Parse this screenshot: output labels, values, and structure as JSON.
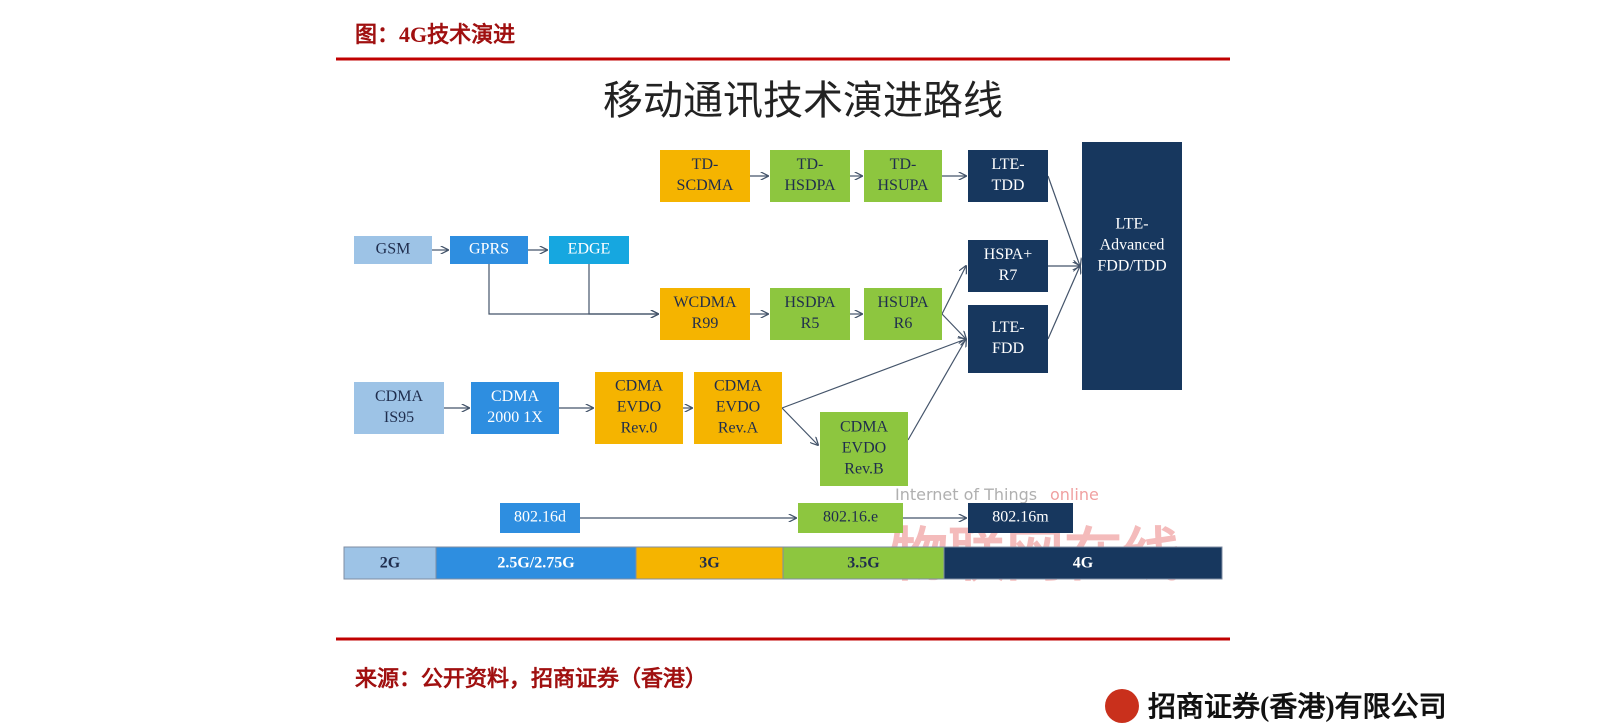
{
  "header": {
    "title": "图：4G技术演进"
  },
  "diagram": {
    "title": "移动通讯技术演进路线",
    "nodes": [
      {
        "lines": [
          "TD-",
          "SCDMA"
        ]
      },
      {
        "lines": [
          "TD-",
          "HSDPA"
        ]
      },
      {
        "lines": [
          "TD-",
          "HSUPA"
        ]
      },
      {
        "lines": [
          "LTE-",
          "TDD"
        ]
      },
      {
        "lines": [
          "LTE-",
          "Advanced",
          "FDD/TDD"
        ]
      },
      {
        "lines": [
          "GSM"
        ]
      },
      {
        "lines": [
          "GPRS"
        ]
      },
      {
        "lines": [
          "EDGE"
        ]
      },
      {
        "lines": [
          "HSPA+",
          "R7"
        ]
      },
      {
        "lines": [
          "WCDMA",
          "R99"
        ]
      },
      {
        "lines": [
          "HSDPA",
          "R5"
        ]
      },
      {
        "lines": [
          "HSUPA",
          "R6"
        ]
      },
      {
        "lines": [
          "LTE-",
          "FDD"
        ]
      },
      {
        "lines": [
          "CDMA",
          "IS95"
        ]
      },
      {
        "lines": [
          "CDMA",
          "2000 1X"
        ]
      },
      {
        "lines": [
          "CDMA",
          "EVDO",
          "Rev.0"
        ]
      },
      {
        "lines": [
          "CDMA",
          "EVDO",
          "Rev.A"
        ]
      },
      {
        "lines": [
          "CDMA",
          "EVDO",
          "Rev.B"
        ]
      },
      {
        "lines": [
          "802.16d"
        ]
      },
      {
        "lines": [
          "802.16.e"
        ]
      },
      {
        "lines": [
          "802.16m"
        ]
      }
    ],
    "generations": [
      "2G",
      "2.5G/2.75G",
      "3G",
      "3.5G",
      "4G"
    ],
    "watermark": [
      "Internet of Things",
      "online",
      "物联网在线"
    ]
  },
  "footer": {
    "source": "来源：公开资料，招商证券（香港）",
    "company": "招商证券(香港)有限公司"
  }
}
